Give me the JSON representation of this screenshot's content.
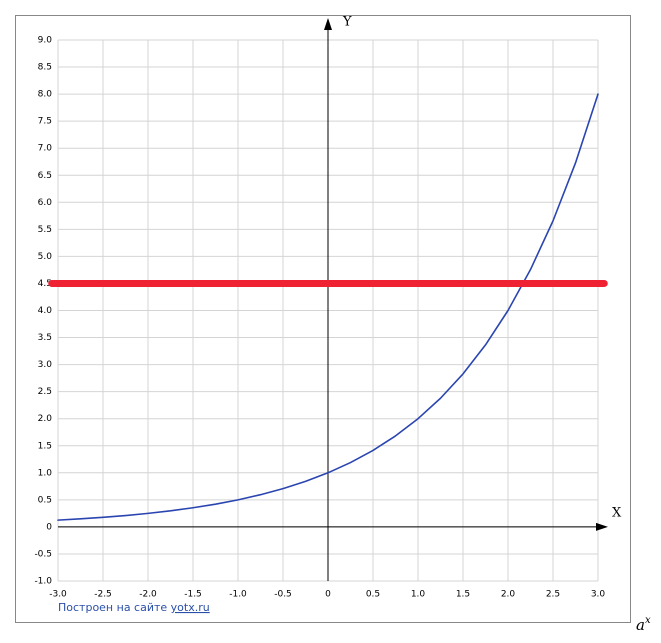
{
  "chart_data": {
    "type": "line",
    "x_label": "X",
    "y_label": "Y",
    "footer_text": "Построен на сайте ",
    "footer_link": "yotx.ru",
    "annotation": {
      "base": "a",
      "exponent": "x"
    },
    "xlim": [
      -3,
      3
    ],
    "ylim": [
      -1,
      9
    ],
    "grid": true,
    "xticks": [
      {
        "value": -3,
        "label": "-3.0"
      },
      {
        "value": -2.5,
        "label": "-2.5"
      },
      {
        "value": -2,
        "label": "-2.0"
      },
      {
        "value": -1.5,
        "label": "-1.5"
      },
      {
        "value": -1,
        "label": "-1.0"
      },
      {
        "value": -0.5,
        "label": "-0.5"
      },
      0,
      {
        "value": 0.5,
        "label": "0.5"
      },
      {
        "value": 1,
        "label": "1.0"
      },
      {
        "value": 1.5,
        "label": "1.5"
      },
      {
        "value": 2,
        "label": "2.0"
      },
      {
        "value": 2.5,
        "label": "2.5"
      },
      {
        "value": 3,
        "label": "3.0"
      }
    ],
    "yticks": [
      {
        "value": -1,
        "label": "-1.0"
      },
      {
        "value": -0.5,
        "label": "-0.5"
      },
      0,
      {
        "value": 0.5,
        "label": "0.5"
      },
      {
        "value": 1,
        "label": "1.0"
      },
      {
        "value": 1.5,
        "label": "1.5"
      },
      {
        "value": 2,
        "label": "2.0"
      },
      {
        "value": 2.5,
        "label": "2.5"
      },
      {
        "value": 3,
        "label": "3.0"
      },
      {
        "value": 3.5,
        "label": "3.5"
      },
      {
        "value": 4,
        "label": "4.0"
      },
      {
        "value": 4.5,
        "label": "4.5"
      },
      {
        "value": 5,
        "label": "5.0"
      },
      {
        "value": 5.5,
        "label": "5.5"
      },
      {
        "value": 6,
        "label": "6.0"
      },
      {
        "value": 6.5,
        "label": "6.5"
      },
      {
        "value": 7,
        "label": "7.0"
      },
      {
        "value": 7.5,
        "label": "7.5"
      },
      {
        "value": 8,
        "label": "8.0"
      },
      {
        "value": 8.5,
        "label": "8.5"
      },
      {
        "value": 9,
        "label": "9.0"
      }
    ],
    "series": [
      {
        "color": "#2a45b0",
        "width": 1.6,
        "x": [
          -3,
          -2.75,
          -2.5,
          -2.25,
          -2,
          -1.75,
          -1.5,
          -1.25,
          -1,
          -0.75,
          -0.5,
          -0.25,
          0,
          0.25,
          0.5,
          0.75,
          1,
          1.25,
          1.5,
          1.75,
          2,
          2.25,
          2.5,
          2.75,
          3
        ],
        "values": [
          0.125,
          0.149,
          0.177,
          0.21,
          0.25,
          0.297,
          0.354,
          0.42,
          0.5,
          0.595,
          0.707,
          0.841,
          1,
          1.189,
          1.414,
          1.682,
          2,
          2.378,
          2.828,
          3.364,
          4,
          4.757,
          5.657,
          6.727,
          8
        ]
      },
      {
        "color": "#ee2233",
        "width": 7,
        "x": [
          -3.07,
          3.07
        ],
        "values": [
          4.5,
          4.5
        ]
      }
    ]
  }
}
